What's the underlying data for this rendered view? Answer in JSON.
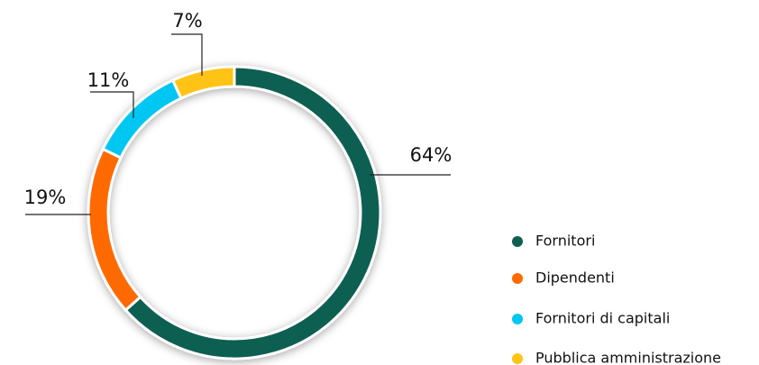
{
  "chart_data": {
    "type": "donut",
    "categories": [
      "Fornitori",
      "Dipendenti",
      "Fornitori di capitali",
      "Pubblica amministrazione"
    ],
    "values": [
      64,
      19,
      11,
      7
    ],
    "value_labels": [
      "64%",
      "19%",
      "11%",
      "7%"
    ],
    "colors": [
      "#0f5e51",
      "#ff6a00",
      "#00c6f2",
      "#ffc312"
    ],
    "legend": "right"
  }
}
